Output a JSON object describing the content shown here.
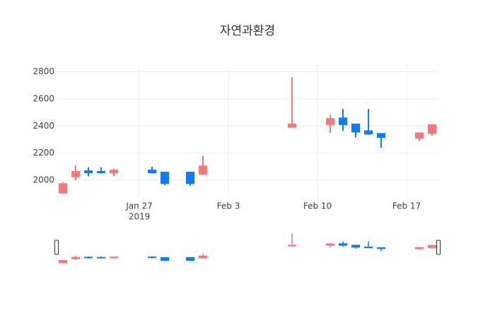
{
  "chart_data": {
    "type": "candlestick",
    "title": "자연과환경",
    "x": [
      "2019-01-21",
      "2019-01-22",
      "2019-01-23",
      "2019-01-24",
      "2019-01-25",
      "2019-01-28",
      "2019-01-29",
      "2019-01-31",
      "2019-02-01",
      "2019-02-08",
      "2019-02-11",
      "2019-02-12",
      "2019-02-13",
      "2019-02-14",
      "2019-02-15",
      "2019-02-18",
      "2019-02-19"
    ],
    "open": [
      1905,
      2025,
      2070,
      2065,
      2055,
      2075,
      2060,
      2060,
      2045,
      2390,
      2410,
      2460,
      2415,
      2365,
      2345,
      2310,
      2345
    ],
    "high": [
      1985,
      2110,
      2095,
      2095,
      2085,
      2100,
      2060,
      2060,
      2180,
      2760,
      2480,
      2525,
      2415,
      2525,
      2345,
      2350,
      2410
    ],
    "low": [
      1905,
      2000,
      2030,
      2050,
      2030,
      2050,
      1965,
      1960,
      2045,
      2390,
      2350,
      2365,
      2315,
      2335,
      2240,
      2290,
      2330
    ],
    "close": [
      1975,
      2065,
      2055,
      2055,
      2075,
      2055,
      1975,
      1975,
      2105,
      2415,
      2455,
      2410,
      2355,
      2340,
      2315,
      2350,
      2410
    ],
    "increasing_color": "#f8787a",
    "decreasing_color": "#0f7cf2",
    "xlim": [
      "2019-01-20 12:00",
      "2019-02-19 12:00"
    ],
    "xticks": [
      {
        "value": "2019-01-27",
        "label": "Jan 27"
      },
      {
        "value": "2019-02-03",
        "label": "Feb 3"
      },
      {
        "value": "2019-02-10",
        "label": "Feb 10"
      },
      {
        "value": "2019-02-17",
        "label": "Feb 17"
      }
    ],
    "xticks_year": "2019",
    "ylim": [
      1870,
      2860
    ],
    "yticks": [
      2000,
      2200,
      2400,
      2600,
      2800
    ],
    "grid": true,
    "rangeslider": true
  }
}
